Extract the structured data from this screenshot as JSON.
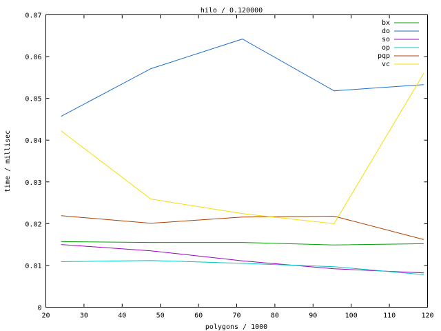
{
  "chart_data": {
    "type": "line",
    "title": "hilo / 0.120000",
    "xlabel": "polygons / 1000",
    "ylabel": "time / millisec",
    "xlim": [
      20,
      120
    ],
    "ylim": [
      0,
      0.07
    ],
    "xticks": [
      "20",
      "30",
      "40",
      "50",
      "60",
      "70",
      "80",
      "90",
      "100",
      "110",
      "120"
    ],
    "yticks": [
      "0",
      "0.01",
      "0.02",
      "0.03",
      "0.04",
      "0.05",
      "0.06",
      "0.07"
    ],
    "x": [
      24,
      47.5,
      71.5,
      95.5,
      119
    ],
    "legend_position": "top-right",
    "series": [
      {
        "name": "bx",
        "color": "#00a000",
        "values": [
          0.0157,
          0.0155,
          0.0155,
          0.0149,
          0.0152
        ]
      },
      {
        "name": "do",
        "color": "#1e6fd0",
        "values": [
          0.0457,
          0.0571,
          0.0642,
          0.0518,
          0.0533
        ]
      },
      {
        "name": "so",
        "color": "#a000c0",
        "values": [
          0.015,
          0.0135,
          0.0111,
          0.0092,
          0.0082
        ]
      },
      {
        "name": "op",
        "color": "#00c8c8",
        "values": [
          0.0109,
          0.0112,
          0.0105,
          0.0097,
          0.0078
        ]
      },
      {
        "name": "pqp",
        "color": "#b04000",
        "values": [
          0.0219,
          0.0201,
          0.0216,
          0.0218,
          0.0162
        ]
      },
      {
        "name": "vc",
        "color": "#f0e000",
        "values": [
          0.0422,
          0.0259,
          0.0224,
          0.02,
          0.056
        ]
      }
    ]
  }
}
